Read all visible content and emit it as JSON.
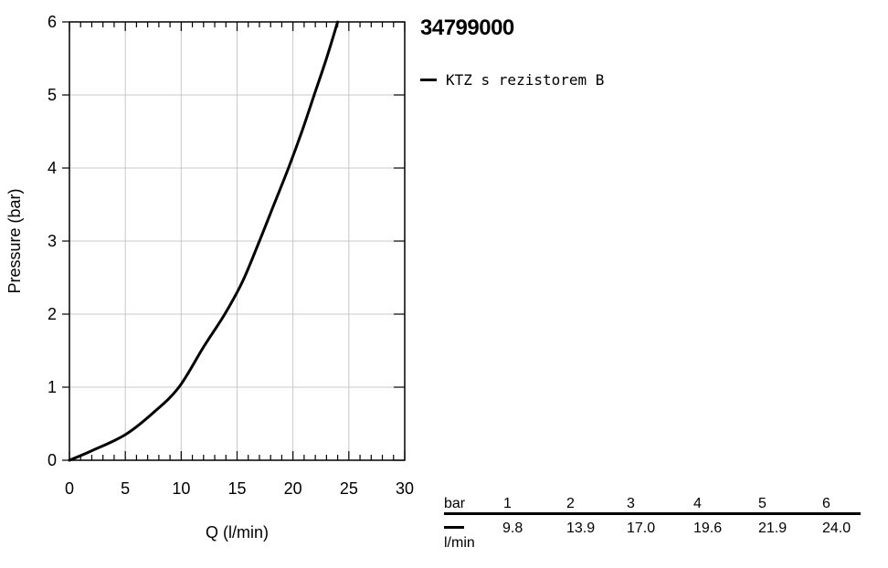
{
  "product": {
    "title": "34799000"
  },
  "legend": {
    "label": "KTZ s rezistorem B"
  },
  "table": {
    "header_unit": "bar",
    "row_unit": "l/min",
    "pressures": [
      "1",
      "2",
      "3",
      "4",
      "5",
      "6"
    ],
    "flows": [
      "9.8",
      "13.9",
      "17.0",
      "19.6",
      "21.9",
      "24.0"
    ]
  },
  "chart_data": {
    "type": "line",
    "xlabel": "Q (l/min)",
    "ylabel": "Pressure (bar)",
    "xlim": [
      0,
      30
    ],
    "ylim": [
      0,
      6
    ],
    "xticks": [
      0,
      5,
      10,
      15,
      20,
      25,
      30
    ],
    "yticks": [
      0,
      1,
      2,
      3,
      4,
      5,
      6
    ],
    "grid": true,
    "series": [
      {
        "name": "KTZ s rezistorem B",
        "color": "#000000",
        "x": [
          0,
          2,
          5,
          7.5,
          9.8,
          12,
          13.9,
          15.5,
          17.0,
          18.3,
          19.6,
          20.8,
          21.9,
          23.0,
          24.0
        ],
        "y": [
          0,
          0.13,
          0.35,
          0.65,
          1.0,
          1.55,
          2.0,
          2.45,
          3.0,
          3.5,
          4.0,
          4.5,
          5.0,
          5.5,
          6.0
        ]
      }
    ]
  }
}
